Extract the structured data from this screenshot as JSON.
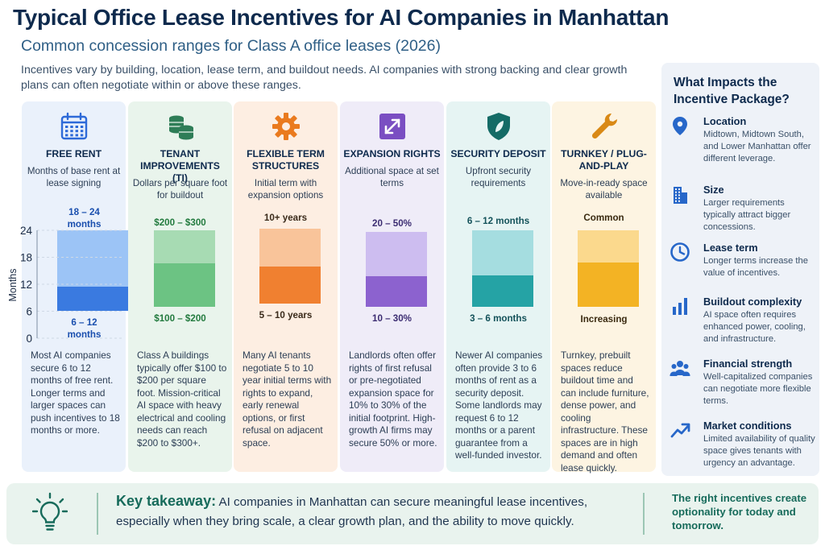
{
  "title": "Typical Office Lease Incentives for AI Companies in Manhattan",
  "subtitle": "Common concession ranges for Class A office leases (2026)",
  "intro": "Incentives vary by building, location, lease term, and buildout needs. AI companies with strong backing and clear growth plans can often negotiate within or above these ranges.",
  "colors": {
    "free_rent": {
      "bg": "#eaf1fb",
      "light": "#9cc4f6",
      "dark": "#3a7ae0",
      "text": "#1a4fae",
      "icon": "#2e6ad8"
    },
    "tenant_improvements": {
      "bg": "#e9f4ec",
      "light": "#a7dbb3",
      "dark": "#6cc383",
      "text": "#227a3e",
      "icon": "#2e7d57"
    },
    "flexible_term": {
      "bg": "#fdeee2",
      "light": "#f9c49a",
      "dark": "#f08030",
      "text": "#3a2a1a",
      "icon": "#ea7a1e"
    },
    "expansion_rights": {
      "bg": "#efecf8",
      "light": "#cdbdf0",
      "dark": "#8c62cf",
      "text": "#3c2d72",
      "icon": "#7a4ec2"
    },
    "security_deposit": {
      "bg": "#e6f4f3",
      "light": "#a5dde0",
      "dark": "#25a3a5",
      "text": "#14525a",
      "icon": "#146b66"
    },
    "turnkey": {
      "bg": "#fdf4e2",
      "light": "#fbd98d",
      "dark": "#f3b324",
      "text": "#3a2a10",
      "icon": "#d98916"
    }
  },
  "chart_data": {
    "type": "bar",
    "ylabel": "Months",
    "yticks": [
      0,
      6,
      12,
      18,
      24
    ],
    "ylim": [
      0,
      24
    ],
    "columns": [
      {
        "key": "free_rent",
        "icon": "calendar-icon",
        "title": "Free Rent",
        "description": "Months of base rent at lease signing",
        "top_label": "18 – 24 months",
        "bottom_label": "6 – 12 months",
        "low_range": [
          6,
          12
        ],
        "high_range": [
          18,
          24
        ],
        "body": "Most AI companies secure 6 to 12 months of free rent. Longer terms and larger spaces can push incentives to 18 months or more."
      },
      {
        "key": "tenant_improvements",
        "icon": "coins-icon",
        "title": "Tenant Improvements (TI)",
        "description": "Dollars per square foot for buildout",
        "top_label": "$200 – $300",
        "bottom_label": "$100 – $200",
        "body": "Class A buildings typically offer $100 to $200 per square foot. Mission-critical AI space with heavy electrical and cooling needs can reach $200 to $300+."
      },
      {
        "key": "flexible_term",
        "icon": "gear-icon",
        "title": "Flexible Term Structures",
        "description": "Initial term with expansion options",
        "top_label": "10+ years",
        "bottom_label": "5 – 10 years",
        "body": "Many AI tenants negotiate 5 to 10 year initial terms with rights to expand, early renewal options, or first refusal on adjacent space."
      },
      {
        "key": "expansion_rights",
        "icon": "expand-arrows-icon",
        "title": "Expansion Rights",
        "description": "Additional space at set terms",
        "top_label": "20 – 50%",
        "bottom_label": "10 – 30%",
        "body": "Landlords often offer rights of first refusal or pre-negotiated expansion space for 10% to 30% of the initial footprint. High-growth AI firms may secure 50% or more."
      },
      {
        "key": "security_deposit",
        "icon": "shield-icon",
        "title": "Security Deposit",
        "description": "Upfront security requirements",
        "top_label": "6 – 12 months",
        "bottom_label": "3 – 6 months",
        "body": "Newer AI companies often provide 3 to 6 months of rent as a security deposit. Some landlords may request 6 to 12 months or a parent guarantee from a well-funded investor."
      },
      {
        "key": "turnkey",
        "icon": "wrench-icon",
        "title": "Turnkey / Plug-and-Play",
        "description": "Move-in-ready space available",
        "top_label": "Common",
        "bottom_label": "Increasing",
        "body": "Turnkey, prebuilt spaces reduce buildout time and can include furniture, dense power, and cooling infrastructure. These spaces are in high demand and often lease quickly."
      }
    ]
  },
  "sidebar": {
    "heading": "What Impacts the Incentive Package?",
    "factors": [
      {
        "icon": "location-pin-icon",
        "title": "Location",
        "text": "Midtown, Midtown South, and Lower Manhattan offer different leverage."
      },
      {
        "icon": "building-icon",
        "title": "Size",
        "text": "Larger requirements typically attract bigger concessions."
      },
      {
        "icon": "clock-icon",
        "title": "Lease term",
        "text": "Longer terms increase the value of incentives."
      },
      {
        "icon": "bar-chart-icon",
        "title": "Buildout complexity",
        "text": "AI space often requires enhanced power, cooling, and infrastructure."
      },
      {
        "icon": "people-icon",
        "title": "Financial strength",
        "text": "Well-capitalized companies can negotiate more flexible terms."
      },
      {
        "icon": "trend-up-icon",
        "title": "Market conditions",
        "text": "Limited availability of quality space gives tenants with urgency an advantage."
      }
    ]
  },
  "footer": {
    "icon": "lightbulb-icon",
    "takeaway_label": "Key takeaway:",
    "takeaway_text": " AI companies in Manhattan can secure meaningful lease incentives, especially when they bring scale, a clear growth plan, and the ability to move quickly.",
    "side_text": "The right incentives create optionality for today and tomorrow."
  }
}
